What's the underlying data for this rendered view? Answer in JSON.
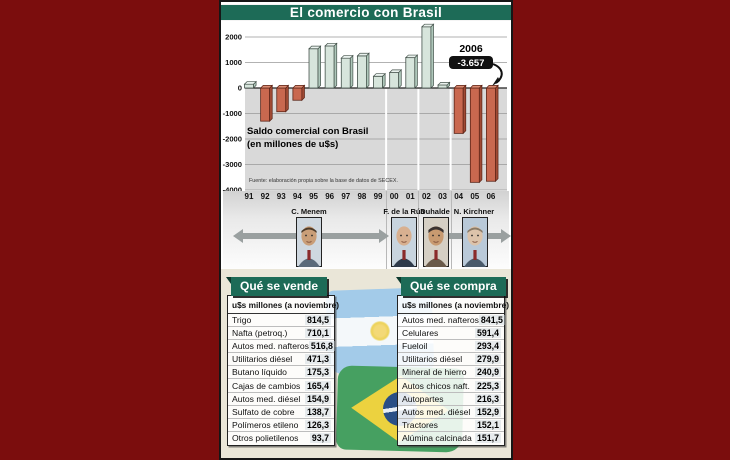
{
  "title": "El comercio con Brasil",
  "chart_data": {
    "type": "bar",
    "categories": [
      "91",
      "92",
      "93",
      "94",
      "95",
      "96",
      "97",
      "98",
      "99",
      "00",
      "01",
      "02",
      "03",
      "04",
      "05",
      "06"
    ],
    "values": [
      150,
      -1300,
      -930,
      -480,
      1540,
      1650,
      1170,
      1260,
      460,
      610,
      1190,
      2400,
      120,
      -1780,
      -3700,
      -3657
    ],
    "title": "Saldo comercial con Brasil",
    "subtitle": "(en millones de u$s)",
    "source": "Fuente: elaboración propia sobre la base de datos de SECEX.",
    "xlabel": "",
    "ylabel": "",
    "yticks": [
      2000,
      1000,
      0,
      -1000,
      -2000,
      -3000,
      -4000
    ],
    "ylim": [
      -4000,
      2500
    ],
    "grid": true,
    "legend": false,
    "callout": {
      "label": "2006",
      "value": "-3.657"
    },
    "era_breaks_after_index": [
      8,
      10,
      12
    ],
    "colors": {
      "positive_bar": "#d7e5dc",
      "negative_bar": "#c9684f"
    }
  },
  "presidents": [
    {
      "name": "C. Menem"
    },
    {
      "name": "F. de la Rúa"
    },
    {
      "name": "Duhalde"
    },
    {
      "name": "N. Kirchner"
    }
  ],
  "tables": {
    "sell": {
      "title": "Qué se vende",
      "header": "u$s millones (a noviembre)",
      "rows": [
        [
          "Trigo",
          "814,5"
        ],
        [
          "Nafta (petroq.)",
          "710,1"
        ],
        [
          "Autos med. nafteros",
          "516,8"
        ],
        [
          "Utilitarios diésel",
          "471,3"
        ],
        [
          "Butano líquido",
          "175,3"
        ],
        [
          "Cajas de cambios",
          "165,4"
        ],
        [
          "Autos med. diésel",
          "154,9"
        ],
        [
          "Sulfato de cobre",
          "138,7"
        ],
        [
          "Polímeros etileno",
          "126,3"
        ],
        [
          "Otros polietilenos",
          "93,7"
        ]
      ]
    },
    "buy": {
      "title": "Qué se compra",
      "header": "u$s millones (a noviembre)",
      "rows": [
        [
          "Autos med. nafteros",
          "841,5"
        ],
        [
          "Celulares",
          "591,4"
        ],
        [
          "Fueloil",
          "293,4"
        ],
        [
          "Utilitarios diésel",
          "279,9"
        ],
        [
          "Mineral de hierro",
          "240,9"
        ],
        [
          "Autos chicos naft.",
          "225,3"
        ],
        [
          "Autopartes",
          "216,3"
        ],
        [
          "Autos med. diésel",
          "152,9"
        ],
        [
          "Tractores",
          "152,1"
        ],
        [
          "Alúmina calcinada",
          "151,7"
        ]
      ]
    }
  },
  "colors": {
    "page_background": "#7b0d0d",
    "header_green": "#1d6b57",
    "panel_beige": "#eae6d8",
    "below_zero_gray": "#d9d9d9",
    "callout_badge": "#111111"
  }
}
